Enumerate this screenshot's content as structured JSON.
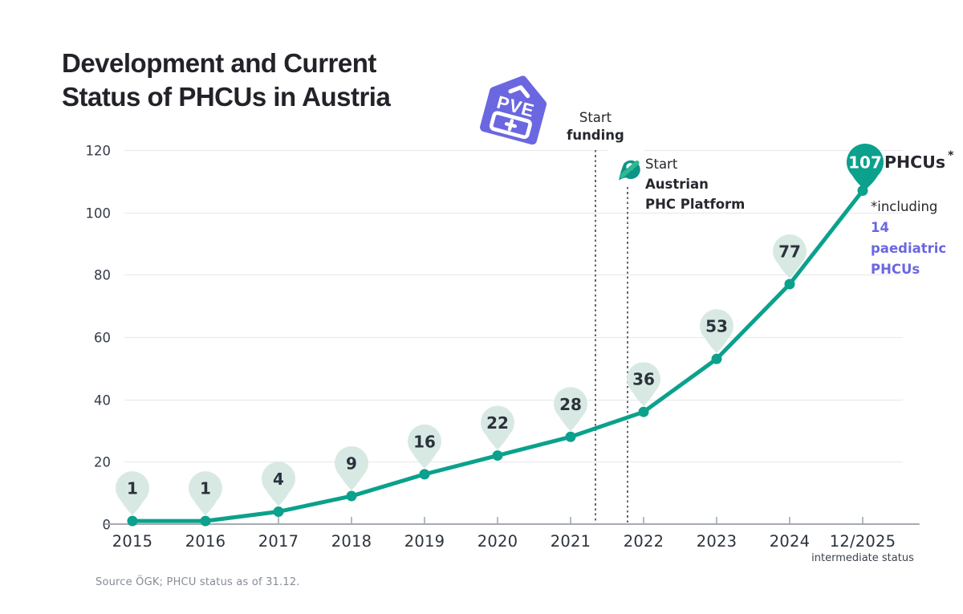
{
  "title": {
    "line1": "Development and Current",
    "line2": "Status of PHCUs in Austria"
  },
  "logo": {
    "text": "PVE",
    "caret_icon": "chevron-up-icon",
    "plus_icon": "plus-icon",
    "color": "#6b67e0"
  },
  "annotations": {
    "funding": {
      "line1": "Start",
      "line2": "funding"
    },
    "platform": {
      "line1": "Start",
      "line2": "Austrian",
      "line3": "PHC Platform",
      "icon": "phc-platform-logo-icon"
    },
    "peak": {
      "value": "107",
      "label": "PHCUs",
      "asterisk": "*"
    },
    "footnote": {
      "line1": "*including",
      "line2": "14 paediatric",
      "line3": "PHCUs"
    }
  },
  "source": "Source ÖGK; PHCU status as of 31.12.",
  "colors": {
    "line_teal": "#0ba18c",
    "pin_light": "#d8e9e4",
    "pin_dark": "#0ba18c",
    "pin_text": "#2b323c",
    "purple": "#6b67e0",
    "dark_text": "#26282e",
    "grid": "#e7e8ea",
    "axis": "#a6abb1",
    "dotted_line": "#606468"
  },
  "chart_data": {
    "type": "line",
    "title": "Development and Current Status of PHCUs in Austria",
    "categories": [
      "2015",
      "2016",
      "2017",
      "2018",
      "2019",
      "2020",
      "2021",
      "2022",
      "2023",
      "2024",
      "12/2025"
    ],
    "values": [
      1,
      1,
      4,
      9,
      16,
      22,
      28,
      36,
      53,
      77,
      107
    ],
    "x_sublabel": {
      "category": "12/2025",
      "text": "intermediate status"
    },
    "ylim": [
      0,
      120
    ],
    "yticks": [
      0,
      20,
      40,
      60,
      80,
      100,
      120
    ],
    "grid": "horizontal only",
    "legend": "none",
    "vlines": [
      {
        "x_year": 2021.34,
        "label": "Start funding"
      },
      {
        "x_year": 2021.78,
        "label": "Start Austrian PHC Platform"
      }
    ],
    "last_point_callout": "107 PHCUs * (*including 14 paediatric PHCUs)"
  }
}
